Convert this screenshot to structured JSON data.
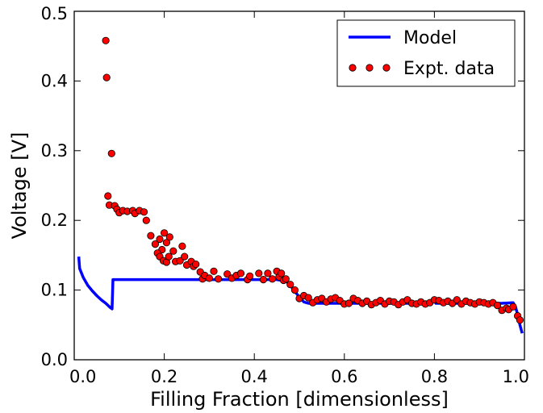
{
  "chart_data": {
    "type": "scatter",
    "title": "",
    "xlabel": "Filling Fraction [dimensionless]",
    "ylabel": "Voltage [V]",
    "xlim": [
      0.0,
      1.0
    ],
    "ylim": [
      0.0,
      0.5
    ],
    "grid": false,
    "legend_position": "top-right",
    "x_ticks": [
      "0.0",
      "0.2",
      "0.4",
      "0.6",
      "0.8",
      "1.0"
    ],
    "y_ticks": [
      "0.0",
      "0.1",
      "0.2",
      "0.3",
      "0.4",
      "0.5"
    ],
    "series": [
      {
        "name": "Model",
        "kind": "line",
        "color": "#0000ff",
        "points": [
          [
            0.01,
            0.148
          ],
          [
            0.012,
            0.131
          ],
          [
            0.02,
            0.118
          ],
          [
            0.03,
            0.107
          ],
          [
            0.04,
            0.099
          ],
          [
            0.05,
            0.092
          ],
          [
            0.06,
            0.086
          ],
          [
            0.07,
            0.081
          ],
          [
            0.08,
            0.075
          ],
          [
            0.084,
            0.073
          ],
          [
            0.086,
            0.115
          ],
          [
            0.1,
            0.115
          ],
          [
            0.2,
            0.115
          ],
          [
            0.3,
            0.115
          ],
          [
            0.4,
            0.115
          ],
          [
            0.45,
            0.115
          ],
          [
            0.47,
            0.113
          ],
          [
            0.48,
            0.107
          ],
          [
            0.49,
            0.098
          ],
          [
            0.5,
            0.09
          ],
          [
            0.51,
            0.083
          ],
          [
            0.52,
            0.081
          ],
          [
            0.6,
            0.081
          ],
          [
            0.7,
            0.081
          ],
          [
            0.79,
            0.081
          ],
          [
            0.8,
            0.088
          ],
          [
            0.803,
            0.081
          ],
          [
            0.85,
            0.081
          ],
          [
            0.9,
            0.081
          ],
          [
            0.95,
            0.081
          ],
          [
            0.975,
            0.082
          ],
          [
            0.98,
            0.076
          ],
          [
            0.985,
            0.065
          ],
          [
            0.99,
            0.05
          ],
          [
            0.995,
            0.038
          ]
        ]
      },
      {
        "name": "Expt. data",
        "kind": "scatter",
        "color": "#ff0000",
        "edge_color": "#000000",
        "points": [
          [
            0.07,
            0.458
          ],
          [
            0.072,
            0.405
          ],
          [
            0.083,
            0.296
          ],
          [
            0.075,
            0.235
          ],
          [
            0.078,
            0.222
          ],
          [
            0.09,
            0.221
          ],
          [
            0.095,
            0.216
          ],
          [
            0.1,
            0.211
          ],
          [
            0.108,
            0.214
          ],
          [
            0.118,
            0.213
          ],
          [
            0.13,
            0.214
          ],
          [
            0.135,
            0.21
          ],
          [
            0.145,
            0.214
          ],
          [
            0.155,
            0.212
          ],
          [
            0.16,
            0.2
          ],
          [
            0.17,
            0.178
          ],
          [
            0.18,
            0.166
          ],
          [
            0.19,
            0.173
          ],
          [
            0.195,
            0.158
          ],
          [
            0.2,
            0.182
          ],
          [
            0.205,
            0.168
          ],
          [
            0.185,
            0.153
          ],
          [
            0.19,
            0.148
          ],
          [
            0.198,
            0.142
          ],
          [
            0.205,
            0.14
          ],
          [
            0.21,
            0.148
          ],
          [
            0.212,
            0.176
          ],
          [
            0.22,
            0.156
          ],
          [
            0.225,
            0.141
          ],
          [
            0.235,
            0.142
          ],
          [
            0.24,
            0.163
          ],
          [
            0.245,
            0.148
          ],
          [
            0.25,
            0.136
          ],
          [
            0.26,
            0.141
          ],
          [
            0.265,
            0.134
          ],
          [
            0.27,
            0.137
          ],
          [
            0.28,
            0.126
          ],
          [
            0.285,
            0.116
          ],
          [
            0.29,
            0.121
          ],
          [
            0.3,
            0.117
          ],
          [
            0.31,
            0.127
          ],
          [
            0.32,
            0.116
          ],
          [
            0.34,
            0.123
          ],
          [
            0.35,
            0.117
          ],
          [
            0.36,
            0.121
          ],
          [
            0.37,
            0.124
          ],
          [
            0.385,
            0.115
          ],
          [
            0.39,
            0.12
          ],
          [
            0.41,
            0.124
          ],
          [
            0.42,
            0.115
          ],
          [
            0.43,
            0.124
          ],
          [
            0.44,
            0.116
          ],
          [
            0.45,
            0.127
          ],
          [
            0.455,
            0.119
          ],
          [
            0.46,
            0.124
          ],
          [
            0.465,
            0.114
          ],
          [
            0.47,
            0.116
          ],
          [
            0.48,
            0.108
          ],
          [
            0.49,
            0.1
          ],
          [
            0.5,
            0.088
          ],
          [
            0.51,
            0.092
          ],
          [
            0.52,
            0.089
          ],
          [
            0.53,
            0.082
          ],
          [
            0.54,
            0.086
          ],
          [
            0.55,
            0.088
          ],
          [
            0.56,
            0.083
          ],
          [
            0.57,
            0.087
          ],
          [
            0.58,
            0.089
          ],
          [
            0.59,
            0.085
          ],
          [
            0.6,
            0.08
          ],
          [
            0.61,
            0.081
          ],
          [
            0.62,
            0.088
          ],
          [
            0.63,
            0.085
          ],
          [
            0.64,
            0.081
          ],
          [
            0.65,
            0.084
          ],
          [
            0.66,
            0.079
          ],
          [
            0.67,
            0.082
          ],
          [
            0.68,
            0.085
          ],
          [
            0.69,
            0.08
          ],
          [
            0.7,
            0.084
          ],
          [
            0.71,
            0.083
          ],
          [
            0.72,
            0.079
          ],
          [
            0.73,
            0.083
          ],
          [
            0.74,
            0.086
          ],
          [
            0.75,
            0.081
          ],
          [
            0.76,
            0.08
          ],
          [
            0.77,
            0.083
          ],
          [
            0.78,
            0.08
          ],
          [
            0.79,
            0.082
          ],
          [
            0.8,
            0.086
          ],
          [
            0.81,
            0.085
          ],
          [
            0.82,
            0.082
          ],
          [
            0.83,
            0.084
          ],
          [
            0.84,
            0.081
          ],
          [
            0.85,
            0.086
          ],
          [
            0.86,
            0.08
          ],
          [
            0.87,
            0.084
          ],
          [
            0.88,
            0.082
          ],
          [
            0.89,
            0.08
          ],
          [
            0.9,
            0.083
          ],
          [
            0.91,
            0.082
          ],
          [
            0.92,
            0.08
          ],
          [
            0.93,
            0.082
          ],
          [
            0.94,
            0.078
          ],
          [
            0.95,
            0.071
          ],
          [
            0.96,
            0.074
          ],
          [
            0.965,
            0.072
          ],
          [
            0.975,
            0.076
          ],
          [
            0.985,
            0.063
          ],
          [
            0.99,
            0.057
          ]
        ]
      }
    ]
  }
}
